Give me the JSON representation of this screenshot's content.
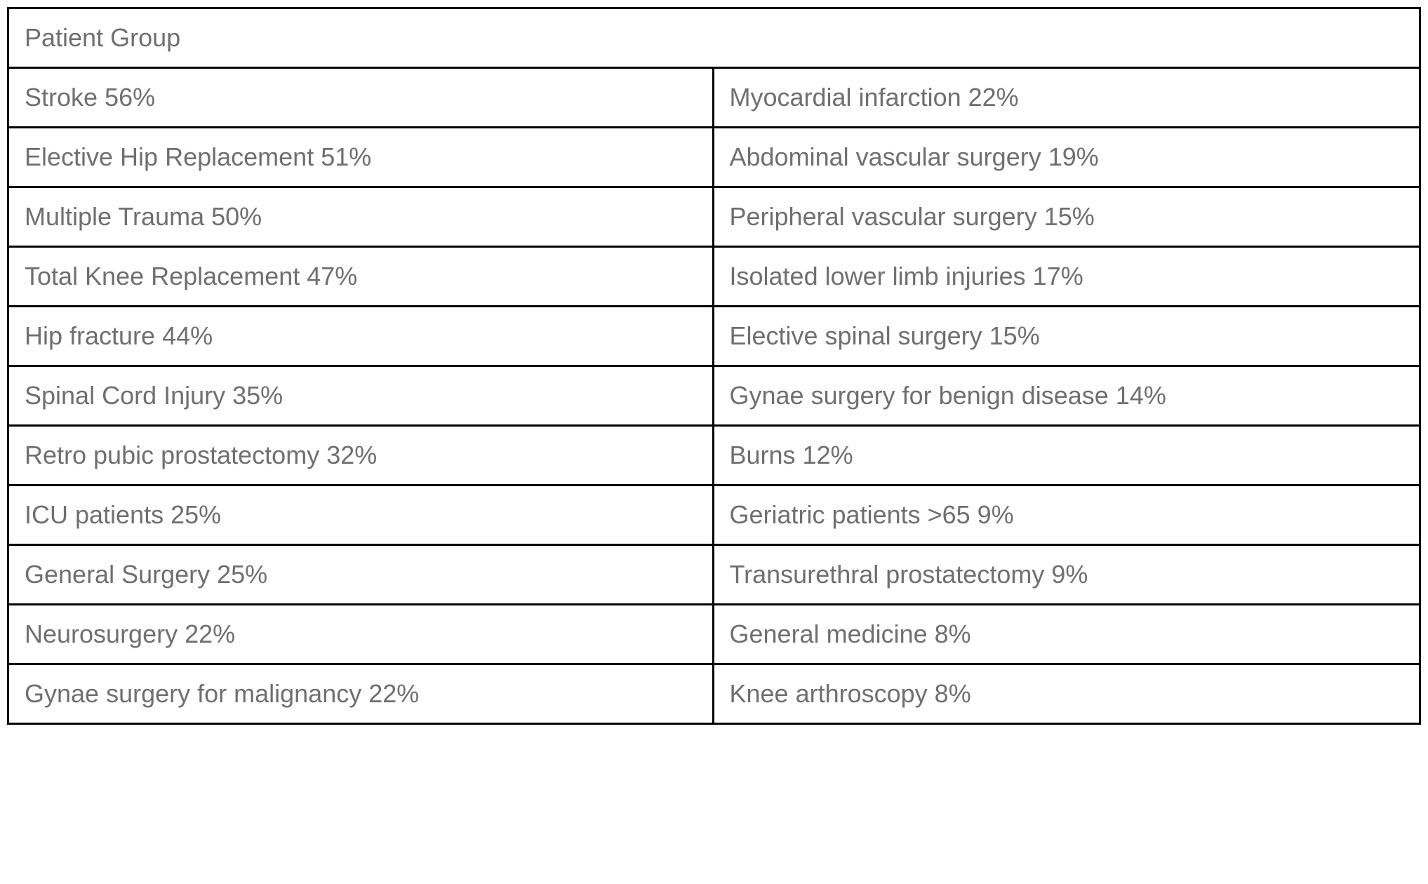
{
  "table": {
    "type": "table",
    "header": "Patient Group",
    "text_color": "#6f6f6f",
    "border_color": "#000000",
    "background_color": "#ffffff",
    "border_width": 3,
    "font_size": 36,
    "cell_padding": "20px 22px",
    "columns": 2,
    "rows": [
      {
        "left": "Stroke 56%",
        "right": "Myocardial infarction 22%"
      },
      {
        "left": "Elective Hip Replacement 51%",
        "right": "Abdominal vascular surgery 19%"
      },
      {
        "left": "Multiple Trauma 50%",
        "right": "Peripheral vascular surgery 15%"
      },
      {
        "left": "Total Knee Replacement 47%",
        "right": "Isolated lower limb injuries 17%"
      },
      {
        "left": "Hip fracture 44%",
        "right": "Elective spinal surgery 15%"
      },
      {
        "left": "Spinal Cord Injury 35%",
        "right": "Gynae surgery for benign disease 14%"
      },
      {
        "left": "Retro pubic prostatectomy 32%",
        "right": "Burns 12%"
      },
      {
        "left": "ICU patients 25%",
        "right": "Geriatric patients >65 9%"
      },
      {
        "left": "General Surgery 25%",
        "right": "Transurethral prostatectomy 9%"
      },
      {
        "left": "Neurosurgery 22%",
        "right": "General medicine 8%"
      },
      {
        "left": "Gynae surgery for malignancy 22%",
        "right": "Knee arthroscopy 8%"
      }
    ]
  }
}
